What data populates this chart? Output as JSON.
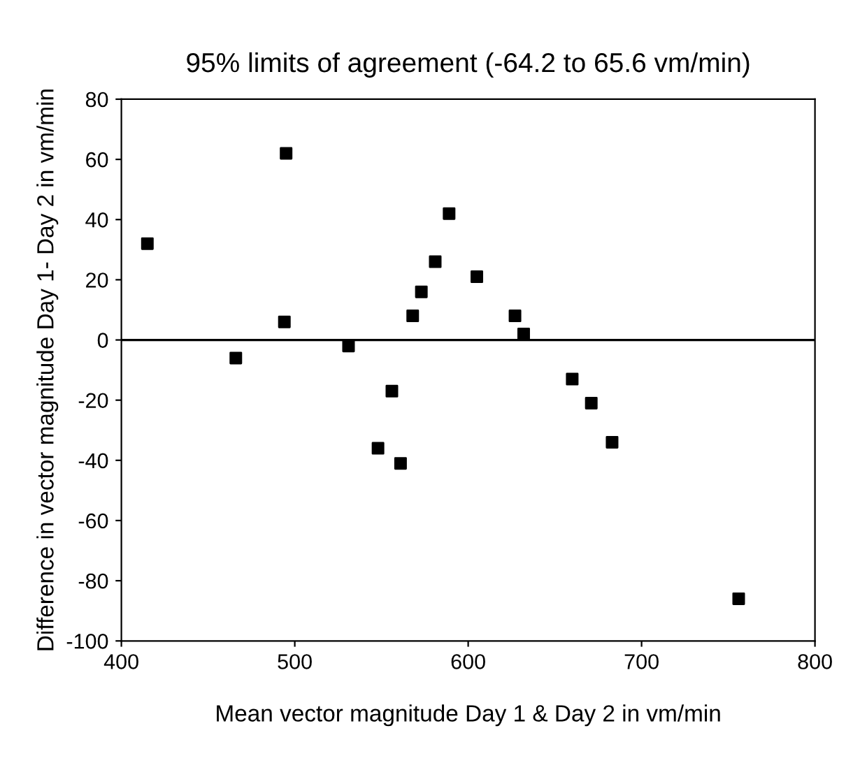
{
  "chart_data": {
    "type": "scatter",
    "title": "95% limits of agreement (-64.2 to 65.6 vm/min)",
    "xlabel": "Mean vector magnitude Day 1 & Day 2 in vm/min",
    "ylabel": "Difference in vector magnitude Day 1- Day 2 in vm/min",
    "x": [
      415,
      466,
      495,
      494,
      531,
      548,
      556,
      561,
      568,
      573,
      581,
      589,
      605,
      627,
      632,
      660,
      671,
      683,
      756
    ],
    "series": [
      {
        "color": "#000000",
        "values": [
          32,
          -6,
          62,
          6,
          -2,
          -36,
          -17,
          -41,
          8,
          16,
          26,
          42,
          21,
          8,
          2,
          -13,
          -21,
          -34,
          -86
        ]
      }
    ],
    "xlim": [
      400,
      800
    ],
    "xticks": [
      400,
      500,
      600,
      700,
      800
    ],
    "ylim": [
      -100,
      80
    ],
    "yticks": [
      -100,
      -80,
      -60,
      -40,
      -20,
      0,
      20,
      40,
      60,
      80
    ],
    "ref_lines": [
      {
        "axis": "y",
        "value": 0,
        "color": "#000000"
      }
    ],
    "marker": "square",
    "grid": false,
    "legend": false
  }
}
